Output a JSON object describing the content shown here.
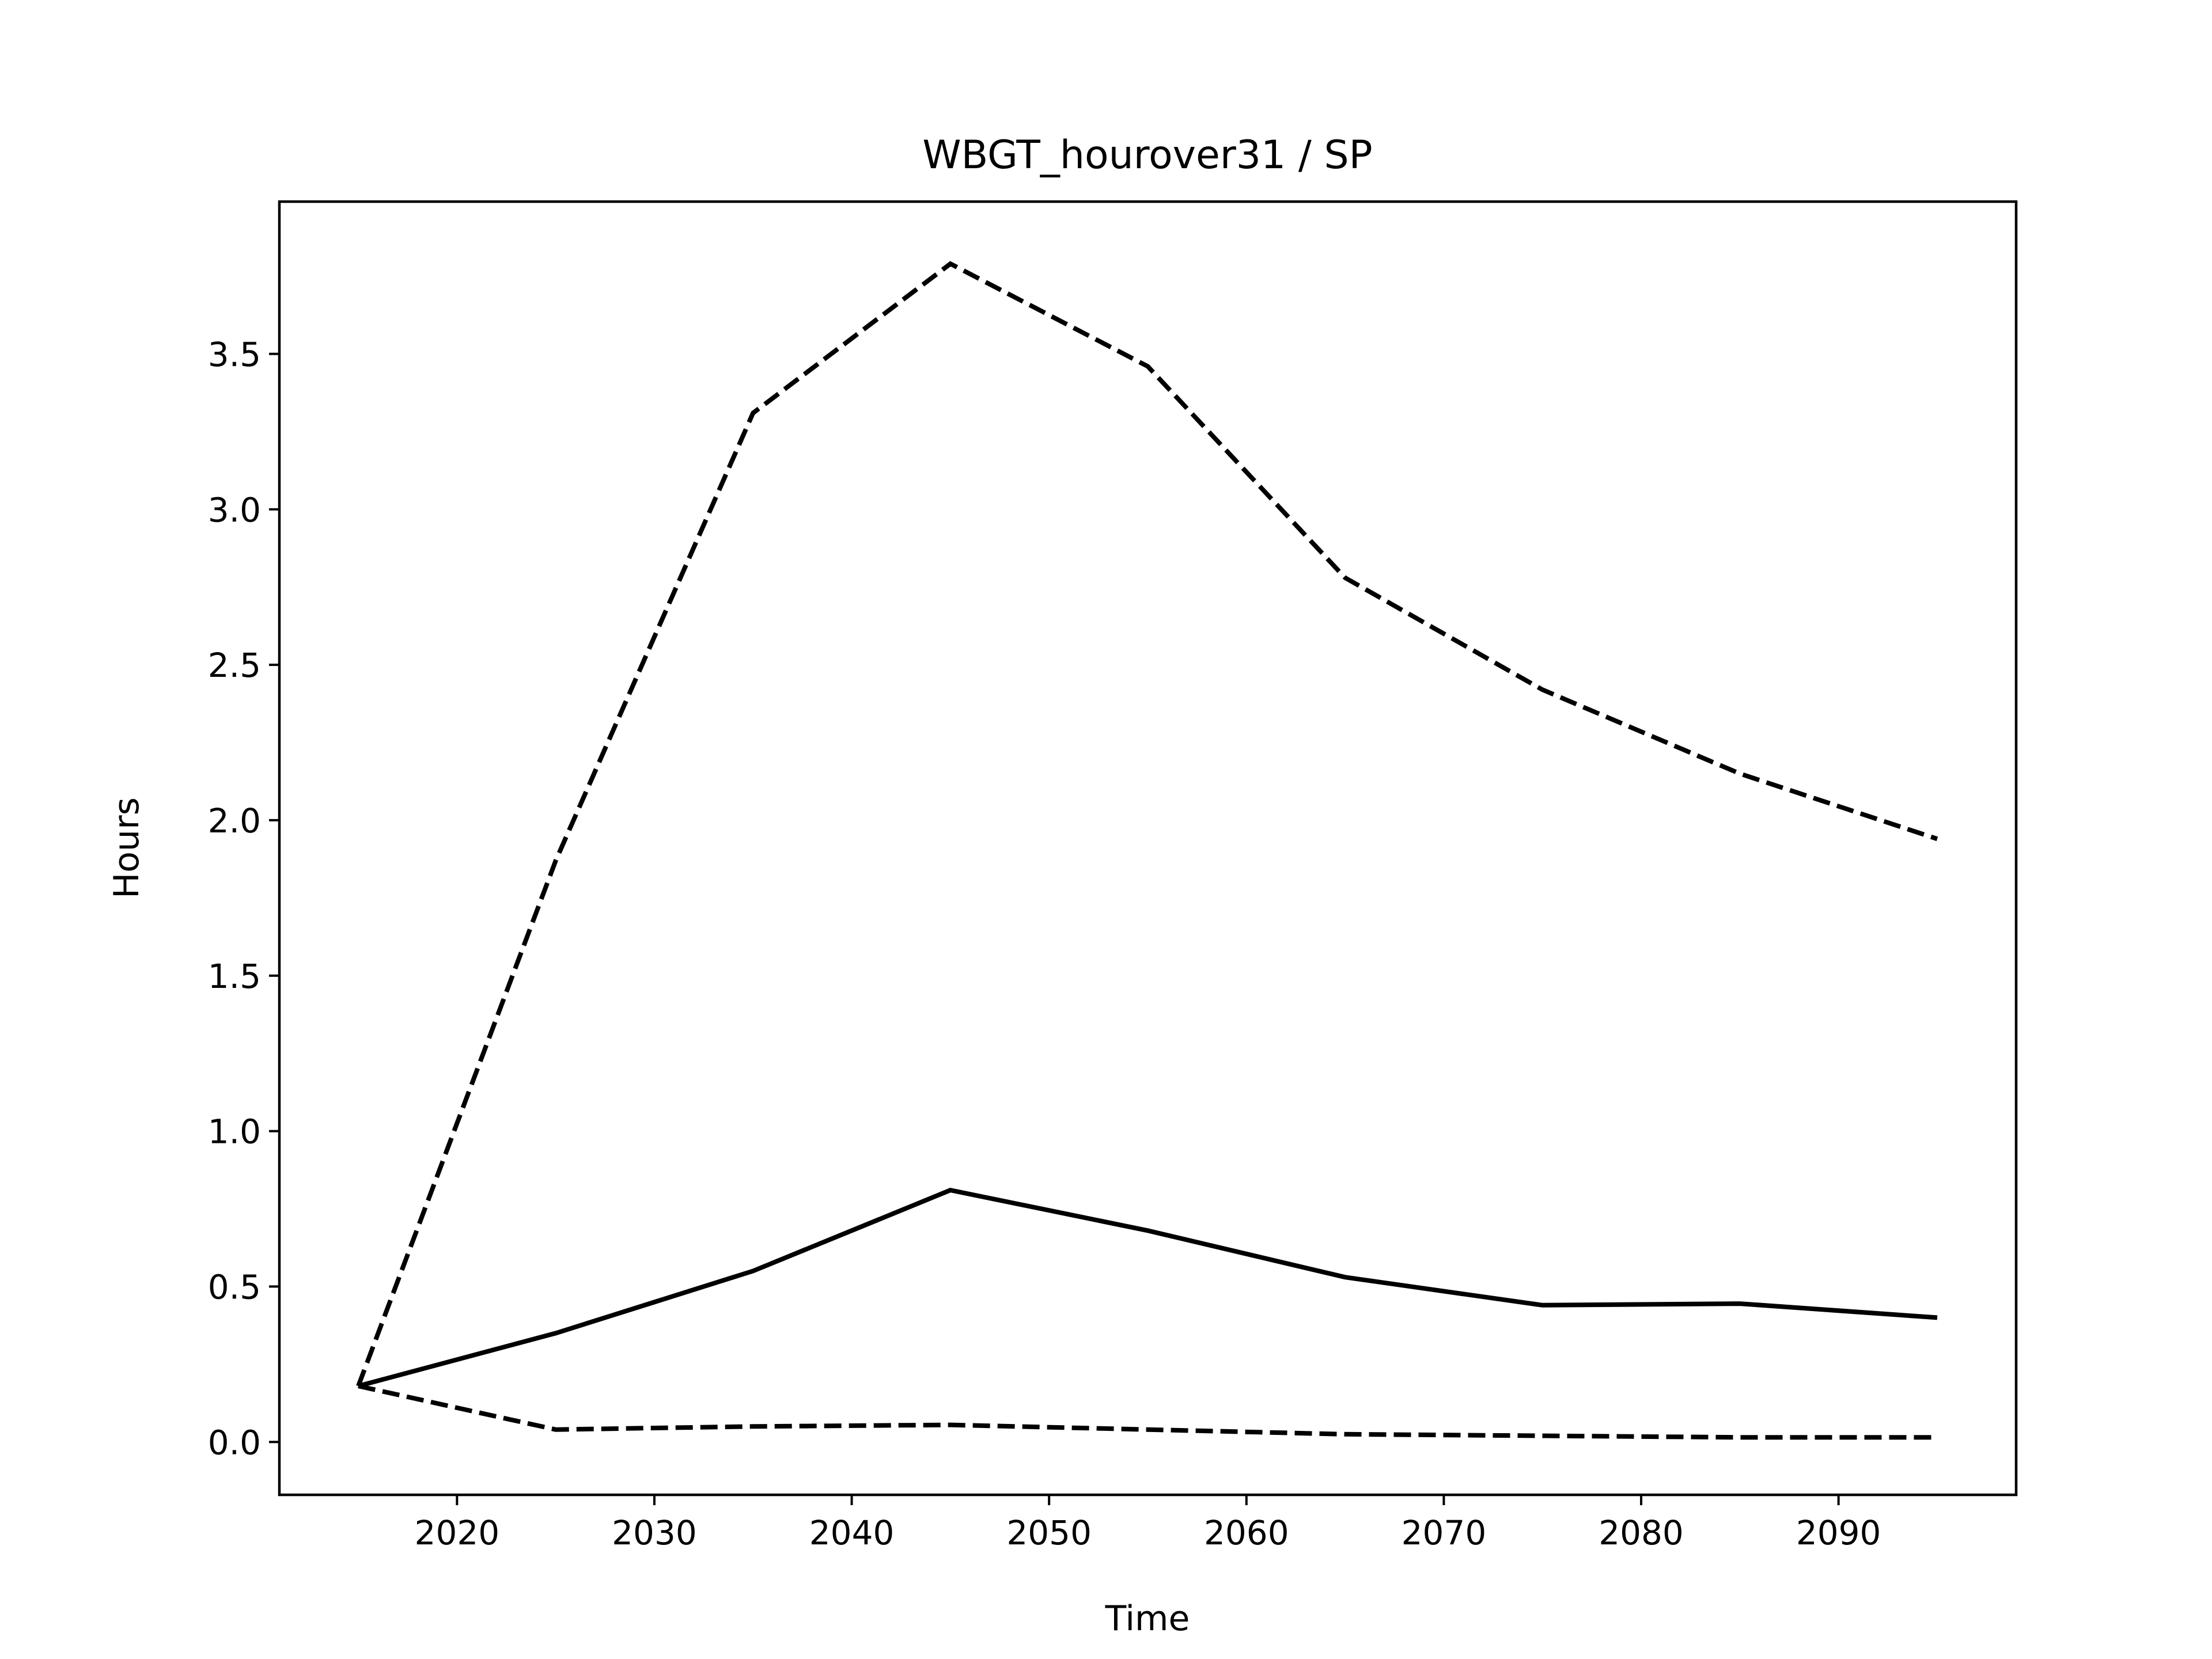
{
  "chart_data": {
    "type": "line",
    "title": "WBGT_hourover31 / SP",
    "xlabel": "Time",
    "ylabel": "Hours",
    "xlim": [
      2011,
      2099
    ],
    "ylim": [
      -0.17,
      3.99
    ],
    "grid": false,
    "x_ticks": [
      2020,
      2030,
      2040,
      2050,
      2060,
      2070,
      2080,
      2090
    ],
    "y_ticks": [
      0.0,
      0.5,
      1.0,
      1.5,
      2.0,
      2.5,
      3.0,
      3.5
    ],
    "x_tick_labels": [
      "2020",
      "2030",
      "2040",
      "2050",
      "2060",
      "2070",
      "2080",
      "2090"
    ],
    "y_tick_labels": [
      "0.0",
      "0.5",
      "1.0",
      "1.5",
      "2.0",
      "2.5",
      "3.0",
      "3.5"
    ],
    "x": [
      2015,
      2025,
      2035,
      2045,
      2055,
      2065,
      2075,
      2085,
      2095
    ],
    "series": [
      {
        "style": "dashed",
        "color": "#000000",
        "values": [
          0.18,
          1.87,
          3.31,
          3.79,
          3.46,
          2.78,
          2.42,
          2.15,
          1.94
        ]
      },
      {
        "style": "solid",
        "color": "#000000",
        "values": [
          0.18,
          0.35,
          0.55,
          0.81,
          0.68,
          0.53,
          0.44,
          0.445,
          0.4
        ]
      },
      {
        "style": "dashed",
        "color": "#000000",
        "values": [
          0.18,
          0.04,
          0.05,
          0.055,
          0.04,
          0.025,
          0.02,
          0.015,
          0.015
        ]
      }
    ]
  }
}
